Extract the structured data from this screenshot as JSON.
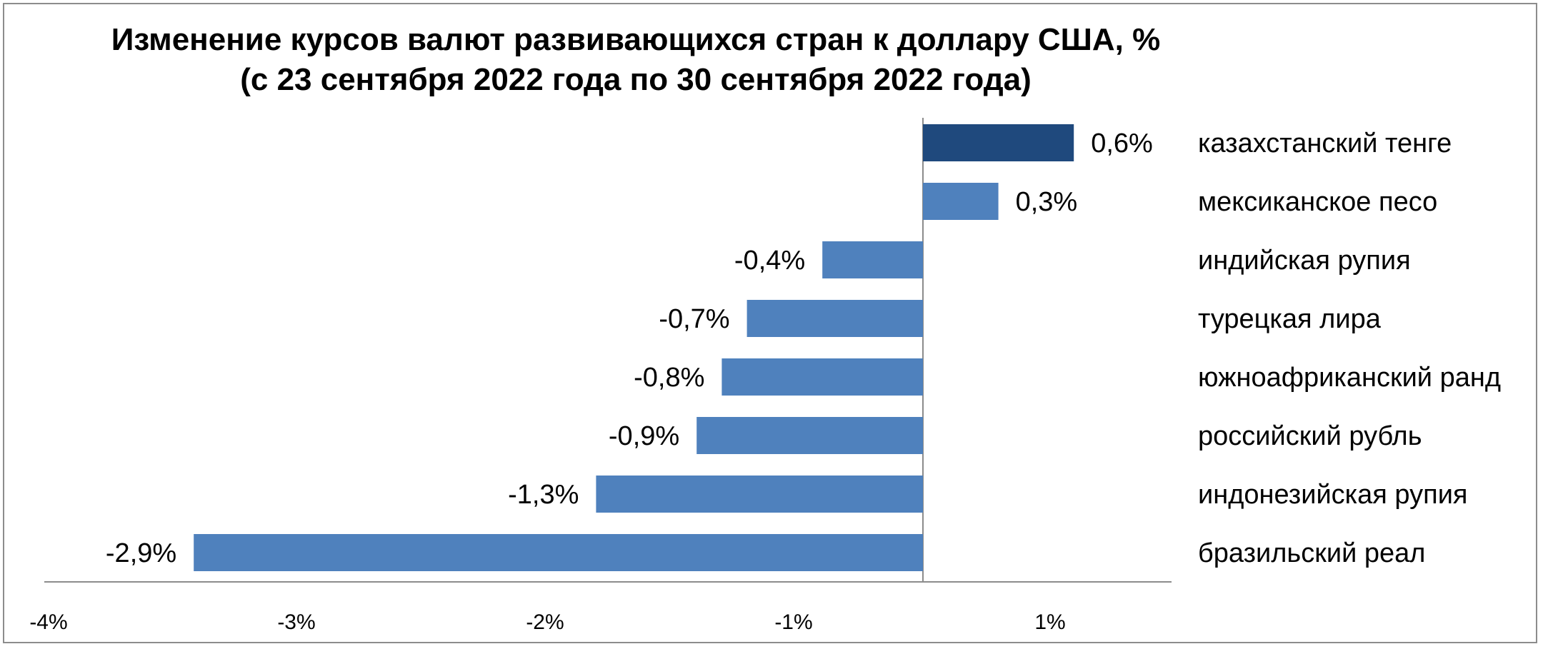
{
  "chart_data": {
    "type": "bar",
    "orientation": "horizontal",
    "title": "Изменение курсов валют развивающихся стран к доллару США, %",
    "subtitle": "(с 23 сентября 2022 года по 30 сентября 2022 года)",
    "xlabel": "",
    "ylabel": "",
    "categories": [
      "казахстанский тенге",
      "мексиканское песо",
      "индийская рупия",
      "турецкая лира",
      "южноафриканский ранд",
      "российский рубль",
      "индонезийская рупия",
      "бразильский реал"
    ],
    "values": [
      0.6,
      0.3,
      -0.4,
      -0.7,
      -0.8,
      -0.9,
      -1.3,
      -2.9
    ],
    "value_labels": [
      "0,6%",
      "0,3%",
      "-0,4%",
      "-0,7%",
      "-0,8%",
      "-0,9%",
      "-1,3%",
      "-2,9%"
    ],
    "x_ticks": [
      "-4%",
      "-3%",
      "-2%",
      "-1%",
      "1%"
    ],
    "xlim": [
      -3.5,
      1.0
    ],
    "grid": false,
    "legend": "none",
    "colors": {
      "highlight": "#1F497D",
      "default": "#4F81BD",
      "axis": "#8c8c8c"
    },
    "highlight_index": 0
  }
}
